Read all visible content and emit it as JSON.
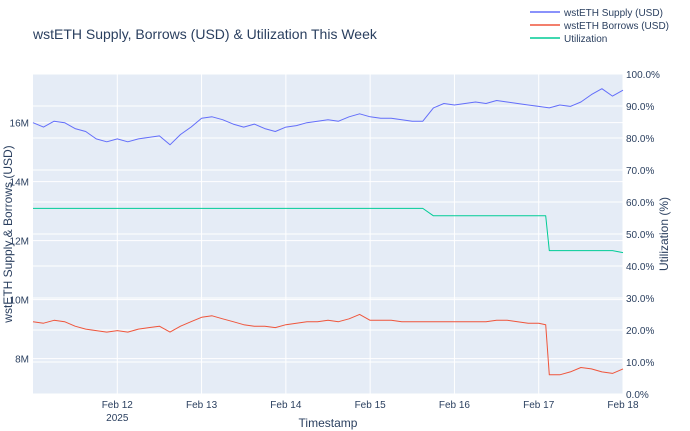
{
  "chart_data": {
    "type": "line",
    "title": "wstETH Supply, Borrows (USD) & Utilization This Week",
    "xlabel": "Timestamp",
    "ylabel": "wstETH Supply & Borrows (USD)",
    "y2label": "Utilization (%)",
    "x_ticks": [
      {
        "label": "Feb 12",
        "sub": "2025",
        "day": 12
      },
      {
        "label": "Feb 13",
        "sub": "",
        "day": 13
      },
      {
        "label": "Feb 14",
        "sub": "",
        "day": 14
      },
      {
        "label": "Feb 15",
        "sub": "",
        "day": 15
      },
      {
        "label": "Feb 16",
        "sub": "",
        "day": 16
      },
      {
        "label": "Feb 17",
        "sub": "",
        "day": 17
      },
      {
        "label": "Feb 18",
        "sub": "",
        "day": 18
      }
    ],
    "xlim": [
      "2025-02-11 00:00",
      "2025-02-18 00:00"
    ],
    "ylim": [
      6800000,
      17650000
    ],
    "y_ticks": [
      {
        "label": "8M",
        "value": 8000000
      },
      {
        "label": "10M",
        "value": 10000000
      },
      {
        "label": "12M",
        "value": 12000000
      },
      {
        "label": "14M",
        "value": 14000000
      },
      {
        "label": "16M",
        "value": 16000000
      }
    ],
    "y2lim": [
      0,
      100
    ],
    "y2_ticks": [
      {
        "label": "0.0%",
        "value": 0
      },
      {
        "label": "10.0%",
        "value": 10
      },
      {
        "label": "20.0%",
        "value": 20
      },
      {
        "label": "30.0%",
        "value": 30
      },
      {
        "label": "40.0%",
        "value": 40
      },
      {
        "label": "50.0%",
        "value": 50
      },
      {
        "label": "60.0%",
        "value": 60
      },
      {
        "label": "70.0%",
        "value": 70
      },
      {
        "label": "80.0%",
        "value": 80
      },
      {
        "label": "90.0%",
        "value": 90
      },
      {
        "label": "100.0%",
        "value": 100
      }
    ],
    "grid": true,
    "legend_position": "top-right",
    "series": [
      {
        "name": "wstETH Supply (USD)",
        "color": "#636efa",
        "axis": "y",
        "x": [
          "2025-02-11 00:00",
          "2025-02-11 03:00",
          "2025-02-11 06:00",
          "2025-02-11 09:00",
          "2025-02-11 12:00",
          "2025-02-11 15:00",
          "2025-02-11 18:00",
          "2025-02-11 21:00",
          "2025-02-12 00:00",
          "2025-02-12 03:00",
          "2025-02-12 06:00",
          "2025-02-12 09:00",
          "2025-02-12 12:00",
          "2025-02-12 15:00",
          "2025-02-12 18:00",
          "2025-02-12 21:00",
          "2025-02-13 00:00",
          "2025-02-13 03:00",
          "2025-02-13 06:00",
          "2025-02-13 09:00",
          "2025-02-13 12:00",
          "2025-02-13 15:00",
          "2025-02-13 18:00",
          "2025-02-13 21:00",
          "2025-02-14 00:00",
          "2025-02-14 03:00",
          "2025-02-14 06:00",
          "2025-02-14 09:00",
          "2025-02-14 12:00",
          "2025-02-14 15:00",
          "2025-02-14 18:00",
          "2025-02-14 21:00",
          "2025-02-15 00:00",
          "2025-02-15 03:00",
          "2025-02-15 06:00",
          "2025-02-15 09:00",
          "2025-02-15 12:00",
          "2025-02-15 15:00",
          "2025-02-15 18:00",
          "2025-02-15 21:00",
          "2025-02-16 00:00",
          "2025-02-16 03:00",
          "2025-02-16 06:00",
          "2025-02-16 09:00",
          "2025-02-16 12:00",
          "2025-02-16 15:00",
          "2025-02-16 18:00",
          "2025-02-16 21:00",
          "2025-02-17 00:00",
          "2025-02-17 03:00",
          "2025-02-17 06:00",
          "2025-02-17 09:00",
          "2025-02-17 12:00",
          "2025-02-17 15:00",
          "2025-02-17 18:00",
          "2025-02-17 21:00",
          "2025-02-18 00:00"
        ],
        "values": [
          16000000,
          15850000,
          16050000,
          16000000,
          15800000,
          15700000,
          15450000,
          15350000,
          15450000,
          15350000,
          15450000,
          15500000,
          15550000,
          15250000,
          15600000,
          15850000,
          16150000,
          16200000,
          16100000,
          15950000,
          15850000,
          15950000,
          15800000,
          15700000,
          15850000,
          15900000,
          16000000,
          16050000,
          16100000,
          16050000,
          16200000,
          16300000,
          16200000,
          16150000,
          16150000,
          16100000,
          16050000,
          16050000,
          16500000,
          16650000,
          16600000,
          16650000,
          16700000,
          16650000,
          16750000,
          16700000,
          16650000,
          16600000,
          16550000,
          16500000,
          16600000,
          16550000,
          16700000,
          16950000,
          17150000,
          16900000,
          17100000
        ]
      },
      {
        "name": "wstETH Borrows (USD)",
        "color": "#ef553b",
        "axis": "y",
        "x": [
          "2025-02-11 00:00",
          "2025-02-11 03:00",
          "2025-02-11 06:00",
          "2025-02-11 09:00",
          "2025-02-11 12:00",
          "2025-02-11 15:00",
          "2025-02-11 18:00",
          "2025-02-11 21:00",
          "2025-02-12 00:00",
          "2025-02-12 03:00",
          "2025-02-12 06:00",
          "2025-02-12 09:00",
          "2025-02-12 12:00",
          "2025-02-12 15:00",
          "2025-02-12 18:00",
          "2025-02-12 21:00",
          "2025-02-13 00:00",
          "2025-02-13 03:00",
          "2025-02-13 06:00",
          "2025-02-13 09:00",
          "2025-02-13 12:00",
          "2025-02-13 15:00",
          "2025-02-13 18:00",
          "2025-02-13 21:00",
          "2025-02-14 00:00",
          "2025-02-14 03:00",
          "2025-02-14 06:00",
          "2025-02-14 09:00",
          "2025-02-14 12:00",
          "2025-02-14 15:00",
          "2025-02-14 18:00",
          "2025-02-14 21:00",
          "2025-02-15 00:00",
          "2025-02-15 03:00",
          "2025-02-15 06:00",
          "2025-02-15 09:00",
          "2025-02-15 12:00",
          "2025-02-15 15:00",
          "2025-02-15 18:00",
          "2025-02-15 21:00",
          "2025-02-16 00:00",
          "2025-02-16 03:00",
          "2025-02-16 06:00",
          "2025-02-16 09:00",
          "2025-02-16 12:00",
          "2025-02-16 15:00",
          "2025-02-16 18:00",
          "2025-02-16 21:00",
          "2025-02-17 00:00",
          "2025-02-17 02:00",
          "2025-02-17 03:00",
          "2025-02-17 06:00",
          "2025-02-17 09:00",
          "2025-02-17 12:00",
          "2025-02-17 15:00",
          "2025-02-17 18:00",
          "2025-02-17 21:00",
          "2025-02-18 00:00"
        ],
        "values": [
          9250000,
          9200000,
          9300000,
          9250000,
          9100000,
          9000000,
          8950000,
          8900000,
          8950000,
          8900000,
          9000000,
          9050000,
          9100000,
          8900000,
          9100000,
          9250000,
          9400000,
          9450000,
          9350000,
          9250000,
          9150000,
          9100000,
          9100000,
          9050000,
          9150000,
          9200000,
          9250000,
          9250000,
          9300000,
          9250000,
          9350000,
          9500000,
          9300000,
          9300000,
          9300000,
          9250000,
          9250000,
          9250000,
          9250000,
          9250000,
          9250000,
          9250000,
          9250000,
          9250000,
          9300000,
          9300000,
          9250000,
          9200000,
          9200000,
          9150000,
          7450000,
          7450000,
          7550000,
          7700000,
          7650000,
          7550000,
          7500000,
          7650000
        ]
      },
      {
        "name": "Utilization",
        "color": "#00cc96",
        "axis": "y2",
        "x": [
          "2025-02-11 00:00",
          "2025-02-15 15:00",
          "2025-02-15 18:00",
          "2025-02-17 02:00",
          "2025-02-17 03:00",
          "2025-02-17 21:00",
          "2025-02-18 00:00"
        ],
        "values": [
          58.0,
          58.0,
          55.7,
          55.7,
          44.8,
          44.8,
          44.2
        ]
      }
    ]
  }
}
